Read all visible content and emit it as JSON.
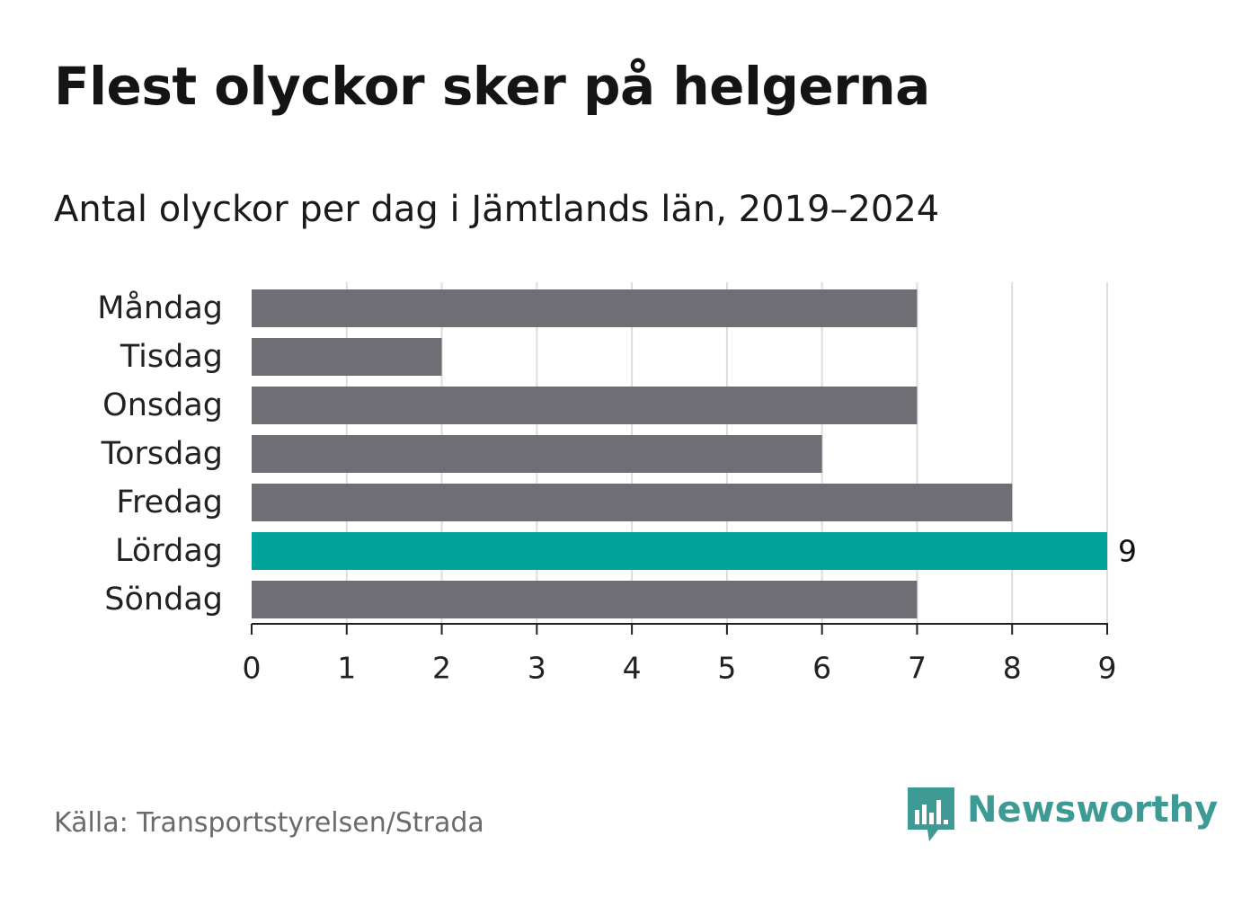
{
  "title": "Flest olyckor sker på helgerna",
  "subtitle": "Antal olyckor per dag i Jämtlands län, 2019–2024",
  "source": "Källa: Transportstyrelsen/Strada",
  "logo": {
    "text": "Newsworthy",
    "icon": "newsworthy-logo-icon",
    "color": "#3e9a94"
  },
  "colors": {
    "bar": "#6f6e75",
    "highlight": "#00a39a",
    "grid": "#dddddd",
    "axis": "#222222"
  },
  "chart_data": {
    "type": "bar",
    "orientation": "horizontal",
    "categories": [
      "Måndag",
      "Tisdag",
      "Onsdag",
      "Torsdag",
      "Fredag",
      "Lördag",
      "Söndag"
    ],
    "values": [
      7,
      2,
      7,
      6,
      8,
      9,
      7
    ],
    "highlighted_category": "Lördag",
    "data_labels": [
      {
        "category": "Lördag",
        "text": "9"
      }
    ],
    "xlim": [
      0,
      9
    ],
    "xticks": [
      "0",
      "1",
      "2",
      "3",
      "4",
      "5",
      "6",
      "7",
      "8",
      "9"
    ],
    "grid": true,
    "legend": "none",
    "title": "Flest olyckor sker på helgerna",
    "subtitle": "Antal olyckor per dag i Jämtlands län, 2019–2024",
    "xlabel": "",
    "ylabel": ""
  }
}
